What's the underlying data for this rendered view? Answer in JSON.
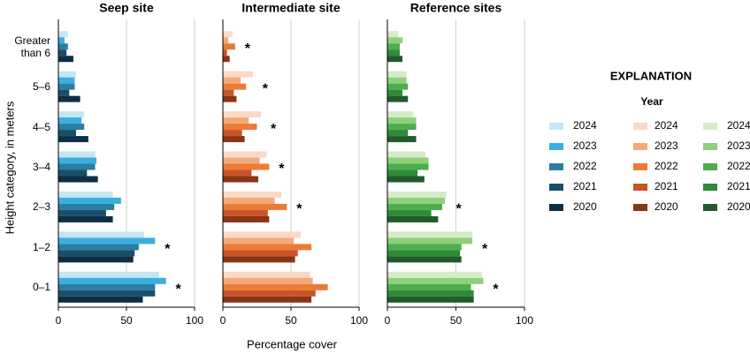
{
  "ylabel": "Height category, in meters",
  "xlabel": "Percentage cover",
  "legend": {
    "title": "EXPLANATION",
    "subtitle": "Year"
  },
  "chart_data": [
    {
      "type": "bar",
      "orientation": "horizontal",
      "title": "Seep site",
      "categories": [
        "Greater than 6",
        "5–6",
        "4–5",
        "3–4",
        "2–3",
        "1–2",
        "0–1"
      ],
      "series": [
        {
          "name": "2024",
          "color": "#c6e6f5",
          "values": [
            7,
            13,
            19,
            27,
            40,
            63,
            74
          ]
        },
        {
          "name": "2023",
          "color": "#3aaee0",
          "values": [
            4.5,
            12,
            17,
            28,
            46,
            71,
            79
          ]
        },
        {
          "name": "2022",
          "color": "#2a7ea3",
          "values": [
            7,
            12,
            19,
            27,
            41,
            59,
            71
          ]
        },
        {
          "name": "2021",
          "color": "#1a4f6a",
          "values": [
            6,
            8,
            13,
            21,
            35,
            56,
            71
          ]
        },
        {
          "name": "2020",
          "color": "#0d2f45",
          "values": [
            11,
            16,
            22,
            29,
            40,
            55,
            62
          ]
        }
      ],
      "significance": [
        null,
        null,
        null,
        null,
        null,
        "*",
        "*"
      ],
      "xlim": [
        0,
        100
      ],
      "xticks": [
        0,
        50,
        100
      ],
      "grid": true
    },
    {
      "type": "bar",
      "orientation": "horizontal",
      "title": "Intermediate site",
      "categories": [
        "Greater than 6",
        "5–6",
        "4–5",
        "3–4",
        "2–3",
        "1–2",
        "0–1"
      ],
      "series": [
        {
          "name": "2024",
          "color": "#fbd9c4",
          "values": [
            7,
            22,
            28,
            32,
            43,
            57,
            64
          ]
        },
        {
          "name": "2023",
          "color": "#f4a97b",
          "values": [
            4,
            13,
            19,
            27,
            38,
            52,
            66
          ]
        },
        {
          "name": "2022",
          "color": "#ec7a34",
          "values": [
            9,
            17,
            25,
            34,
            47,
            65,
            77
          ]
        },
        {
          "name": "2021",
          "color": "#c9532a",
          "values": [
            3,
            8,
            14,
            21,
            33,
            55,
            68
          ]
        },
        {
          "name": "2020",
          "color": "#8a3515",
          "values": [
            5,
            10,
            16,
            26,
            34,
            53,
            65
          ]
        }
      ],
      "significance": [
        "*",
        "*",
        "*",
        "*",
        "*",
        null,
        null
      ],
      "xlim": [
        0,
        100
      ],
      "xticks": [
        0,
        50,
        100
      ],
      "grid": true
    },
    {
      "type": "bar",
      "orientation": "horizontal",
      "title": "Reference sites",
      "categories": [
        "Greater than 6",
        "5–6",
        "4–5",
        "3–4",
        "2–3",
        "1–2",
        "0–1"
      ],
      "series": [
        {
          "name": "2024",
          "color": "#d5ecc8",
          "values": [
            8,
            14,
            19,
            28,
            43,
            62,
            69
          ]
        },
        {
          "name": "2023",
          "color": "#8fd07a",
          "values": [
            11,
            14,
            21,
            30,
            42,
            62,
            70
          ]
        },
        {
          "name": "2022",
          "color": "#4cae4c",
          "values": [
            9,
            15,
            21,
            30,
            40,
            54,
            61
          ]
        },
        {
          "name": "2021",
          "color": "#2f8a3b",
          "values": [
            9,
            11,
            15,
            22,
            32,
            53,
            63
          ]
        },
        {
          "name": "2020",
          "color": "#235a2c",
          "values": [
            11,
            15,
            21,
            27,
            37,
            54,
            63
          ]
        }
      ],
      "significance": [
        null,
        null,
        null,
        null,
        "*",
        "*",
        "*"
      ],
      "xlim": [
        0,
        100
      ],
      "xticks": [
        0,
        50,
        100
      ],
      "grid": true
    }
  ]
}
